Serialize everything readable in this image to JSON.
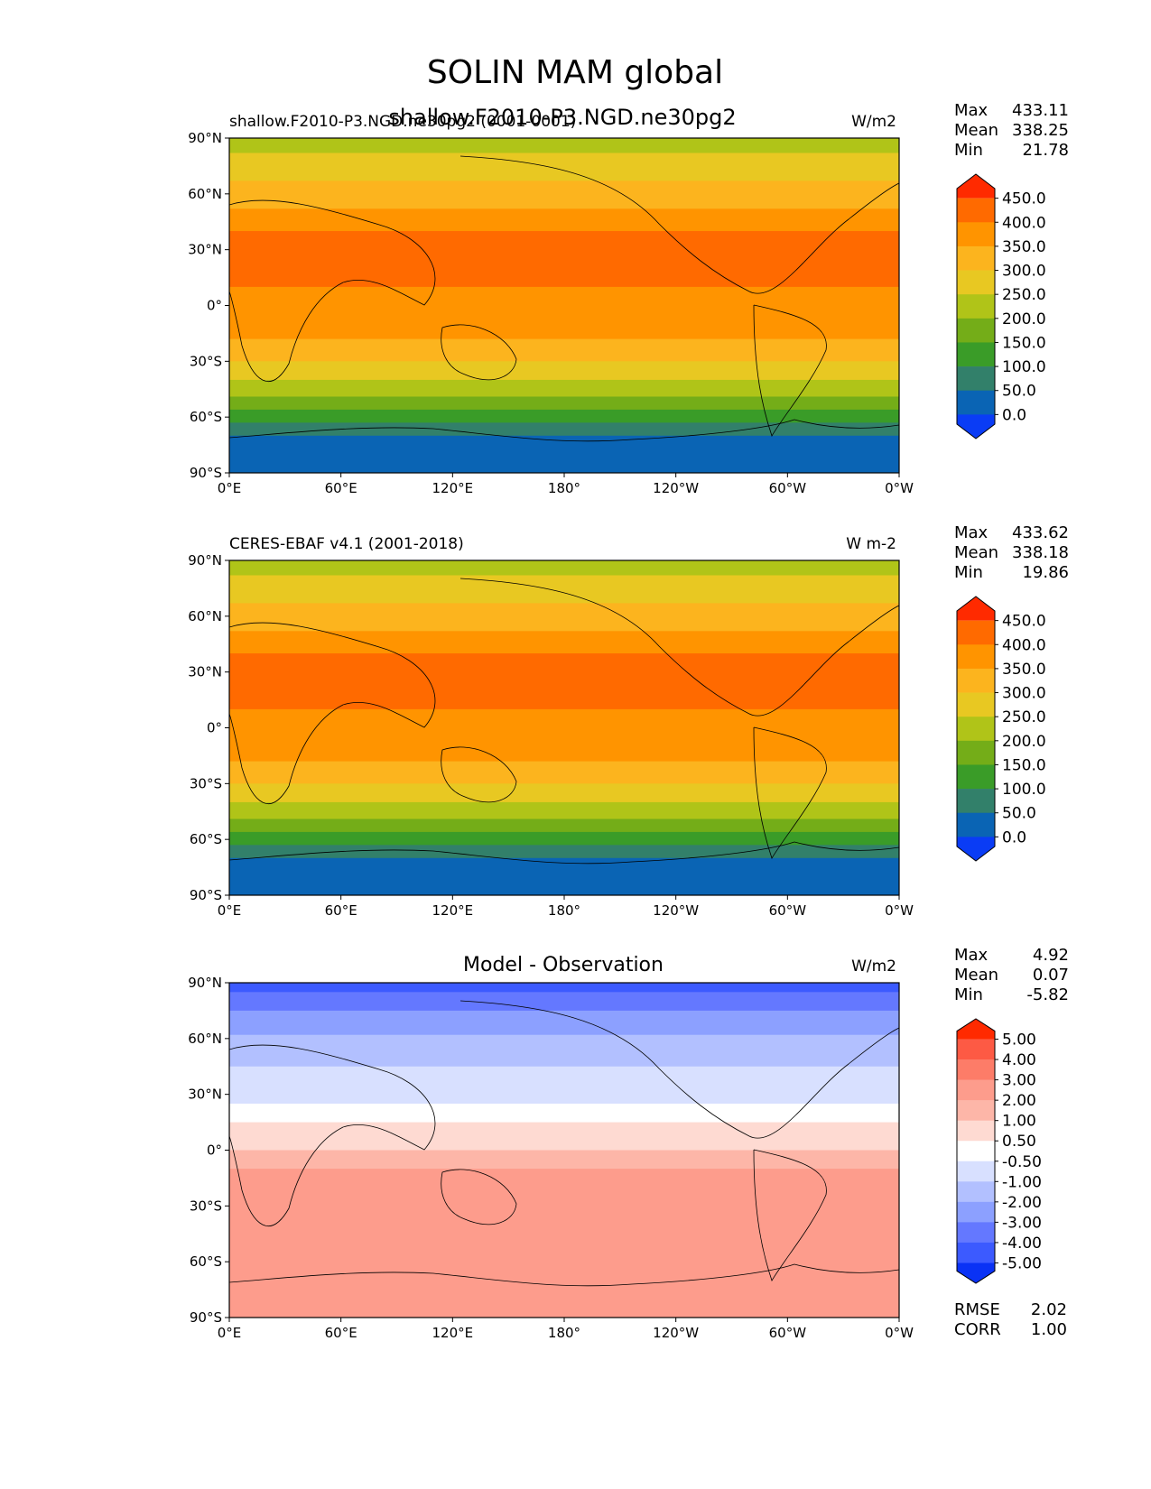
{
  "figure": {
    "title": "SOLIN MAM global",
    "overlapping_title": "shallow.F2010-P3.NGD.ne30pg2"
  },
  "map": {
    "lat_ticks": [
      "90°N",
      "60°N",
      "30°N",
      "0°",
      "30°S",
      "60°S",
      "90°S"
    ],
    "lon_ticks": [
      "0°E",
      "60°E",
      "120°E",
      "180°",
      "120°W",
      "60°W",
      "0°W"
    ]
  },
  "chart_data": [
    {
      "type": "heatmap",
      "left_title": "shallow.F2010-P3.NGD.ne30pg2 (0001-0001)",
      "units": "W/m2",
      "stats": {
        "labels": [
          "Max",
          "Mean",
          "Min"
        ],
        "values": [
          "433.11",
          "338.25",
          "21.78"
        ]
      },
      "colorbar": {
        "levels": [
          "450.0",
          "400.0",
          "350.0",
          "300.0",
          "250.0",
          "200.0",
          "150.0",
          "100.0",
          "50.0",
          "0.0"
        ],
        "colors": [
          "#ff2a00",
          "#ff6a00",
          "#ff9400",
          "#fcb41e",
          "#e8c822",
          "#b0c418",
          "#74ad18",
          "#3a9c28",
          "#32806a",
          "#0a64b4",
          "#0a3cf5"
        ]
      },
      "bands_from_north": [
        {
          "lat": 82,
          "value": 205
        },
        {
          "lat": 67,
          "value": 255
        },
        {
          "lat": 52,
          "value": 310
        },
        {
          "lat": 40,
          "value": 360
        },
        {
          "lat": 10,
          "value": 415
        },
        {
          "lat": -18,
          "value": 370
        },
        {
          "lat": -30,
          "value": 315
        },
        {
          "lat": -40,
          "value": 265
        },
        {
          "lat": -49,
          "value": 210
        },
        {
          "lat": -56,
          "value": 160
        },
        {
          "lat": -63,
          "value": 110
        },
        {
          "lat": -70,
          "value": 60
        },
        {
          "lat": -90,
          "value": 25
        }
      ]
    },
    {
      "type": "heatmap",
      "left_title": "CERES-EBAF v4.1 (2001-2018)",
      "units": "W m-2",
      "stats": {
        "labels": [
          "Max",
          "Mean",
          "Min"
        ],
        "values": [
          "433.62",
          "338.18",
          "19.86"
        ]
      },
      "colorbar": {
        "levels": [
          "450.0",
          "400.0",
          "350.0",
          "300.0",
          "250.0",
          "200.0",
          "150.0",
          "100.0",
          "50.0",
          "0.0"
        ],
        "colors": [
          "#ff2a00",
          "#ff6a00",
          "#ff9400",
          "#fcb41e",
          "#e8c822",
          "#b0c418",
          "#74ad18",
          "#3a9c28",
          "#32806a",
          "#0a64b4",
          "#0a3cf5"
        ]
      },
      "bands_from_north": [
        {
          "lat": 82,
          "value": 205
        },
        {
          "lat": 67,
          "value": 255
        },
        {
          "lat": 52,
          "value": 310
        },
        {
          "lat": 40,
          "value": 360
        },
        {
          "lat": 10,
          "value": 415
        },
        {
          "lat": -18,
          "value": 370
        },
        {
          "lat": -30,
          "value": 315
        },
        {
          "lat": -40,
          "value": 265
        },
        {
          "lat": -49,
          "value": 210
        },
        {
          "lat": -56,
          "value": 160
        },
        {
          "lat": -63,
          "value": 110
        },
        {
          "lat": -70,
          "value": 60
        },
        {
          "lat": -90,
          "value": 25
        }
      ]
    },
    {
      "type": "heatmap",
      "center_title": "Model - Observation",
      "units": "W/m2",
      "stats": {
        "labels": [
          "Max",
          "Mean",
          "Min"
        ],
        "values": [
          "4.92",
          "0.07",
          "-5.82"
        ]
      },
      "colorbar": {
        "levels": [
          "5.00",
          "4.00",
          "3.00",
          "2.00",
          "1.00",
          "0.50",
          "-0.50",
          "-1.00",
          "-2.00",
          "-3.00",
          "-4.00",
          "-5.00"
        ],
        "colors": [
          "#ff2a00",
          "#fd5a44",
          "#fd7c68",
          "#fd9c8c",
          "#fdb6a8",
          "#fedad2",
          "#ffffff",
          "#d8e0ff",
          "#b2c0ff",
          "#8ca0ff",
          "#6478ff",
          "#3c5aff",
          "#0a32f5"
        ]
      },
      "bands_from_north": [
        {
          "lat": 85,
          "value": -4.6
        },
        {
          "lat": 75,
          "value": -3.6
        },
        {
          "lat": 62,
          "value": -2.6
        },
        {
          "lat": 45,
          "value": -1.6
        },
        {
          "lat": 25,
          "value": -0.8
        },
        {
          "lat": 15,
          "value": 0.0
        },
        {
          "lat": 0,
          "value": 0.7
        },
        {
          "lat": -10,
          "value": 1.4
        },
        {
          "lat": -28,
          "value": 2.3
        },
        {
          "lat": -50,
          "value": 2.9
        },
        {
          "lat": -90,
          "value": 2.6
        }
      ],
      "metrics": {
        "labels": [
          "RMSE",
          "CORR"
        ],
        "values": [
          "2.02",
          "1.00"
        ]
      }
    }
  ]
}
